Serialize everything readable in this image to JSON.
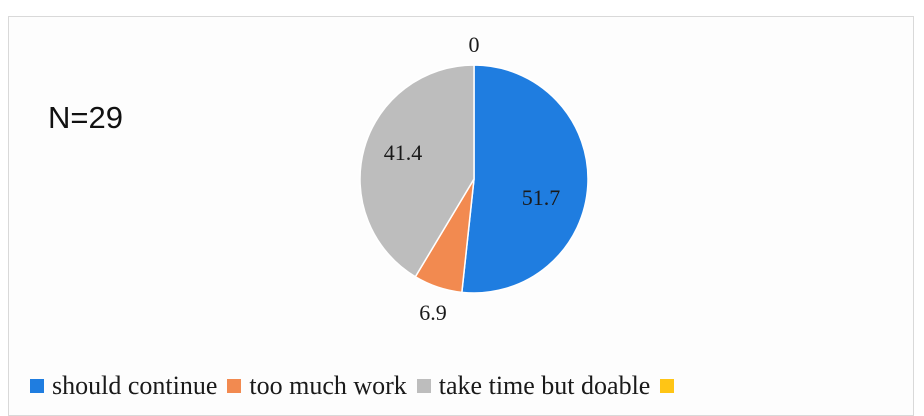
{
  "annotation": {
    "n_label": "N=29"
  },
  "chart_data": {
    "type": "pie",
    "slices": [
      {
        "name": "should continue",
        "value": 51.7,
        "label": "51.7",
        "color": "#1f7de0"
      },
      {
        "name": "too much work",
        "value": 6.9,
        "label": "6.9",
        "color": "#f28a50"
      },
      {
        "name": "take time but doable",
        "value": 41.4,
        "label": "41.4",
        "color": "#bdbdbd"
      },
      {
        "name": "",
        "value": 0,
        "label": "0",
        "color": "#ffc515"
      }
    ],
    "legend": "bottom"
  }
}
